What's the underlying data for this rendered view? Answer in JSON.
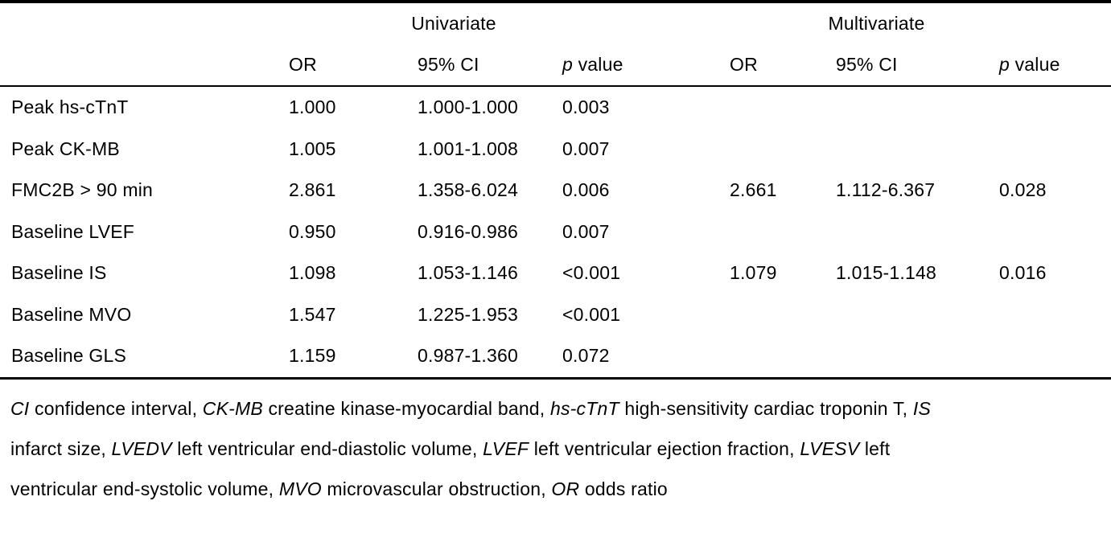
{
  "table": {
    "group_headers": {
      "univariate": "Univariate",
      "multivariate": "Multivariate"
    },
    "column_headers": {
      "or_uni": "OR",
      "ci_uni": "95% CI",
      "p_uni_italic": "p",
      "p_uni_word": "value",
      "or_multi": "OR",
      "ci_multi": "95% CI",
      "p_multi_italic": "p",
      "p_multi_word": "value"
    },
    "rows": [
      [
        "Peak hs-cTnT",
        "1.000",
        "1.000-1.000",
        "0.003",
        "",
        "",
        ""
      ],
      [
        "Peak CK-MB",
        "1.005",
        "1.001-1.008",
        "0.007",
        "",
        "",
        ""
      ],
      [
        "FMC2B > 90 min",
        "2.861",
        "1.358-6.024",
        "0.006",
        "2.661",
        "1.112-6.367",
        "0.028"
      ],
      [
        "Baseline LVEF",
        "0.950",
        "0.916-0.986",
        "0.007",
        "",
        "",
        ""
      ],
      [
        "Baseline IS",
        "1.098",
        "1.053-1.146",
        "<0.001",
        "1.079",
        "1.015-1.148",
        "0.016"
      ],
      [
        "Baseline MVO",
        "1.547",
        "1.225-1.953",
        "<0.001",
        "",
        "",
        ""
      ],
      [
        "Baseline GLS",
        "1.159",
        "0.987-1.360",
        "0.072",
        "",
        "",
        ""
      ]
    ]
  },
  "footnote": {
    "lines": [
      [
        {
          "text": "CI",
          "italic": true
        },
        {
          "text": " confidence interval, ",
          "italic": false
        },
        {
          "text": "CK-MB",
          "italic": true
        },
        {
          "text": " creatine kinase-myocardial band, ",
          "italic": false
        },
        {
          "text": "hs-cTnT",
          "italic": true
        },
        {
          "text": " high-sensitivity cardiac troponin T, ",
          "italic": false
        },
        {
          "text": "IS",
          "italic": true
        }
      ],
      [
        {
          "text": "infarct size, ",
          "italic": false
        },
        {
          "text": "LVEDV",
          "italic": true
        },
        {
          "text": " left ventricular end-diastolic volume, ",
          "italic": false
        },
        {
          "text": "LVEF",
          "italic": true
        },
        {
          "text": " left ventricular ejection fraction, ",
          "italic": false
        },
        {
          "text": "LVESV",
          "italic": true
        },
        {
          "text": " left",
          "italic": false
        }
      ],
      [
        {
          "text": "ventricular end-systolic volume, ",
          "italic": false
        },
        {
          "text": "MVO",
          "italic": true
        },
        {
          "text": " microvascular obstruction, ",
          "italic": false
        },
        {
          "text": "OR",
          "italic": true
        },
        {
          "text": " odds ratio",
          "italic": false
        }
      ]
    ]
  },
  "colors": {
    "text": "#000000",
    "rule": "#000000",
    "background": "#ffffff"
  }
}
